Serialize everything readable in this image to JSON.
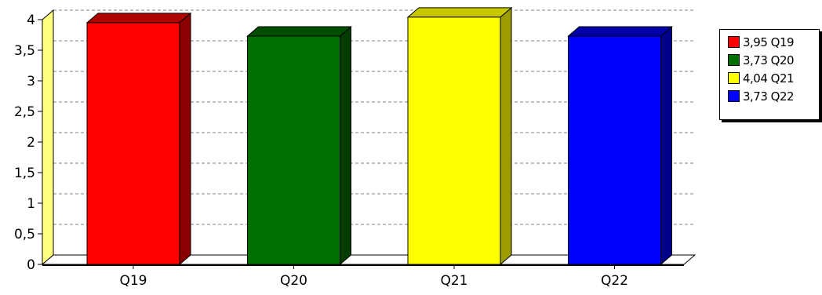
{
  "chart_data": {
    "type": "bar",
    "categories": [
      "Q19",
      "Q20",
      "Q21",
      "Q22"
    ],
    "values": [
      3.95,
      3.73,
      4.04,
      3.73
    ],
    "colors": [
      "#ff0000",
      "#007000",
      "#ffff00",
      "#0000ff"
    ],
    "side_colors": [
      "#8b0000",
      "#003b00",
      "#9c9c00",
      "#00008a"
    ],
    "top_colors": [
      "#b00000",
      "#004d00",
      "#c8c800",
      "#0000a8"
    ],
    "y_ticks": [
      "0",
      "0,5",
      "1",
      "1,5",
      "2",
      "2,5",
      "3",
      "3,5",
      "4"
    ],
    "ylim": [
      0,
      4
    ],
    "grid": true,
    "legend": {
      "placement": "right",
      "items": [
        "3,95 Q19",
        "3,73 Q20",
        "4,04 Q21",
        "3,73 Q22"
      ]
    }
  }
}
